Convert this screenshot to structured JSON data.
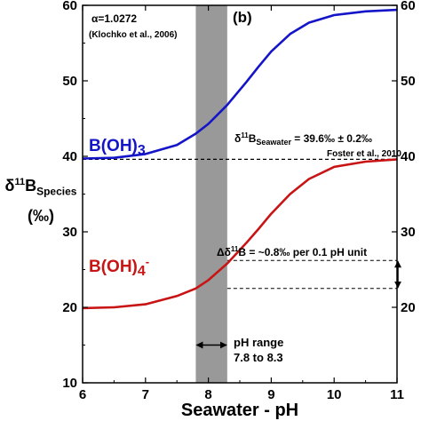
{
  "chart_data": {
    "type": "line",
    "panel_label": "(b)",
    "xlabel": "Seawater - pH",
    "ylabel": {
      "prefix": "δ",
      "sup": "11",
      "main": "B",
      "sub": "Species",
      "unit": "(‰)"
    },
    "xlim": [
      6,
      11
    ],
    "ylim": [
      10,
      60
    ],
    "xticks": [
      6,
      7,
      8,
      9,
      10,
      11
    ],
    "yticks": [
      10,
      20,
      30,
      40,
      50,
      60
    ],
    "y2ticks": [
      20,
      30,
      40,
      50,
      60
    ],
    "grid": false,
    "series": [
      {
        "name": "B(OH)3",
        "color": "#1414c8",
        "x": [
          6.0,
          6.5,
          7.0,
          7.5,
          7.8,
          8.0,
          8.3,
          8.6,
          8.8,
          9.0,
          9.3,
          9.6,
          10.0,
          10.5,
          11.0
        ],
        "y": [
          39.7,
          39.8,
          40.3,
          41.5,
          43.0,
          44.3,
          46.8,
          49.8,
          51.9,
          53.9,
          56.2,
          57.7,
          58.7,
          59.2,
          59.4
        ]
      },
      {
        "name": "B(OH)4-",
        "color": "#c81414",
        "x": [
          6.0,
          6.5,
          7.0,
          7.5,
          7.8,
          8.0,
          8.3,
          8.6,
          8.8,
          9.0,
          9.3,
          9.6,
          10.0,
          10.5,
          11.0
        ],
        "y": [
          19.9,
          20.0,
          20.4,
          21.5,
          22.5,
          23.6,
          25.8,
          28.5,
          30.4,
          32.4,
          35.0,
          37.0,
          38.6,
          39.3,
          39.6
        ]
      }
    ],
    "series_labels": [
      {
        "base": "B(OH)",
        "sub": "3",
        "sup": "",
        "color": "#1414c8"
      },
      {
        "base": "B(OH)",
        "sub": "4",
        "sup": "-",
        "color": "#c81414"
      }
    ],
    "shaded_band": {
      "x": [
        7.8,
        8.3
      ],
      "color": "#999999"
    },
    "reference_line": {
      "y": 39.6,
      "style": "dashed"
    },
    "bracket": {
      "y": [
        22.5,
        26.2
      ],
      "x": [
        8.3,
        11.0
      ]
    },
    "ph_arrow": {
      "x": [
        7.8,
        8.3
      ],
      "y": 15.0
    },
    "annotations": {
      "alpha": "α=1.0272",
      "alpha_source": "(Klochko et al., 2006)",
      "seawater_prefix": "δ",
      "seawater_sup": "11",
      "seawater_main": "B",
      "seawater_sub": "Seawater",
      "seawater_value": " = 39.6‰ ± 0.2‰",
      "seawater_source": "Foster et al., 2010",
      "delta_text": "Δδ",
      "delta_sup": "11",
      "delta_rest": "B = ~0.8‰ per 0.1 pH unit",
      "ph_range_line1": "pH range",
      "ph_range_line2": "7.8 to 8.3"
    }
  }
}
